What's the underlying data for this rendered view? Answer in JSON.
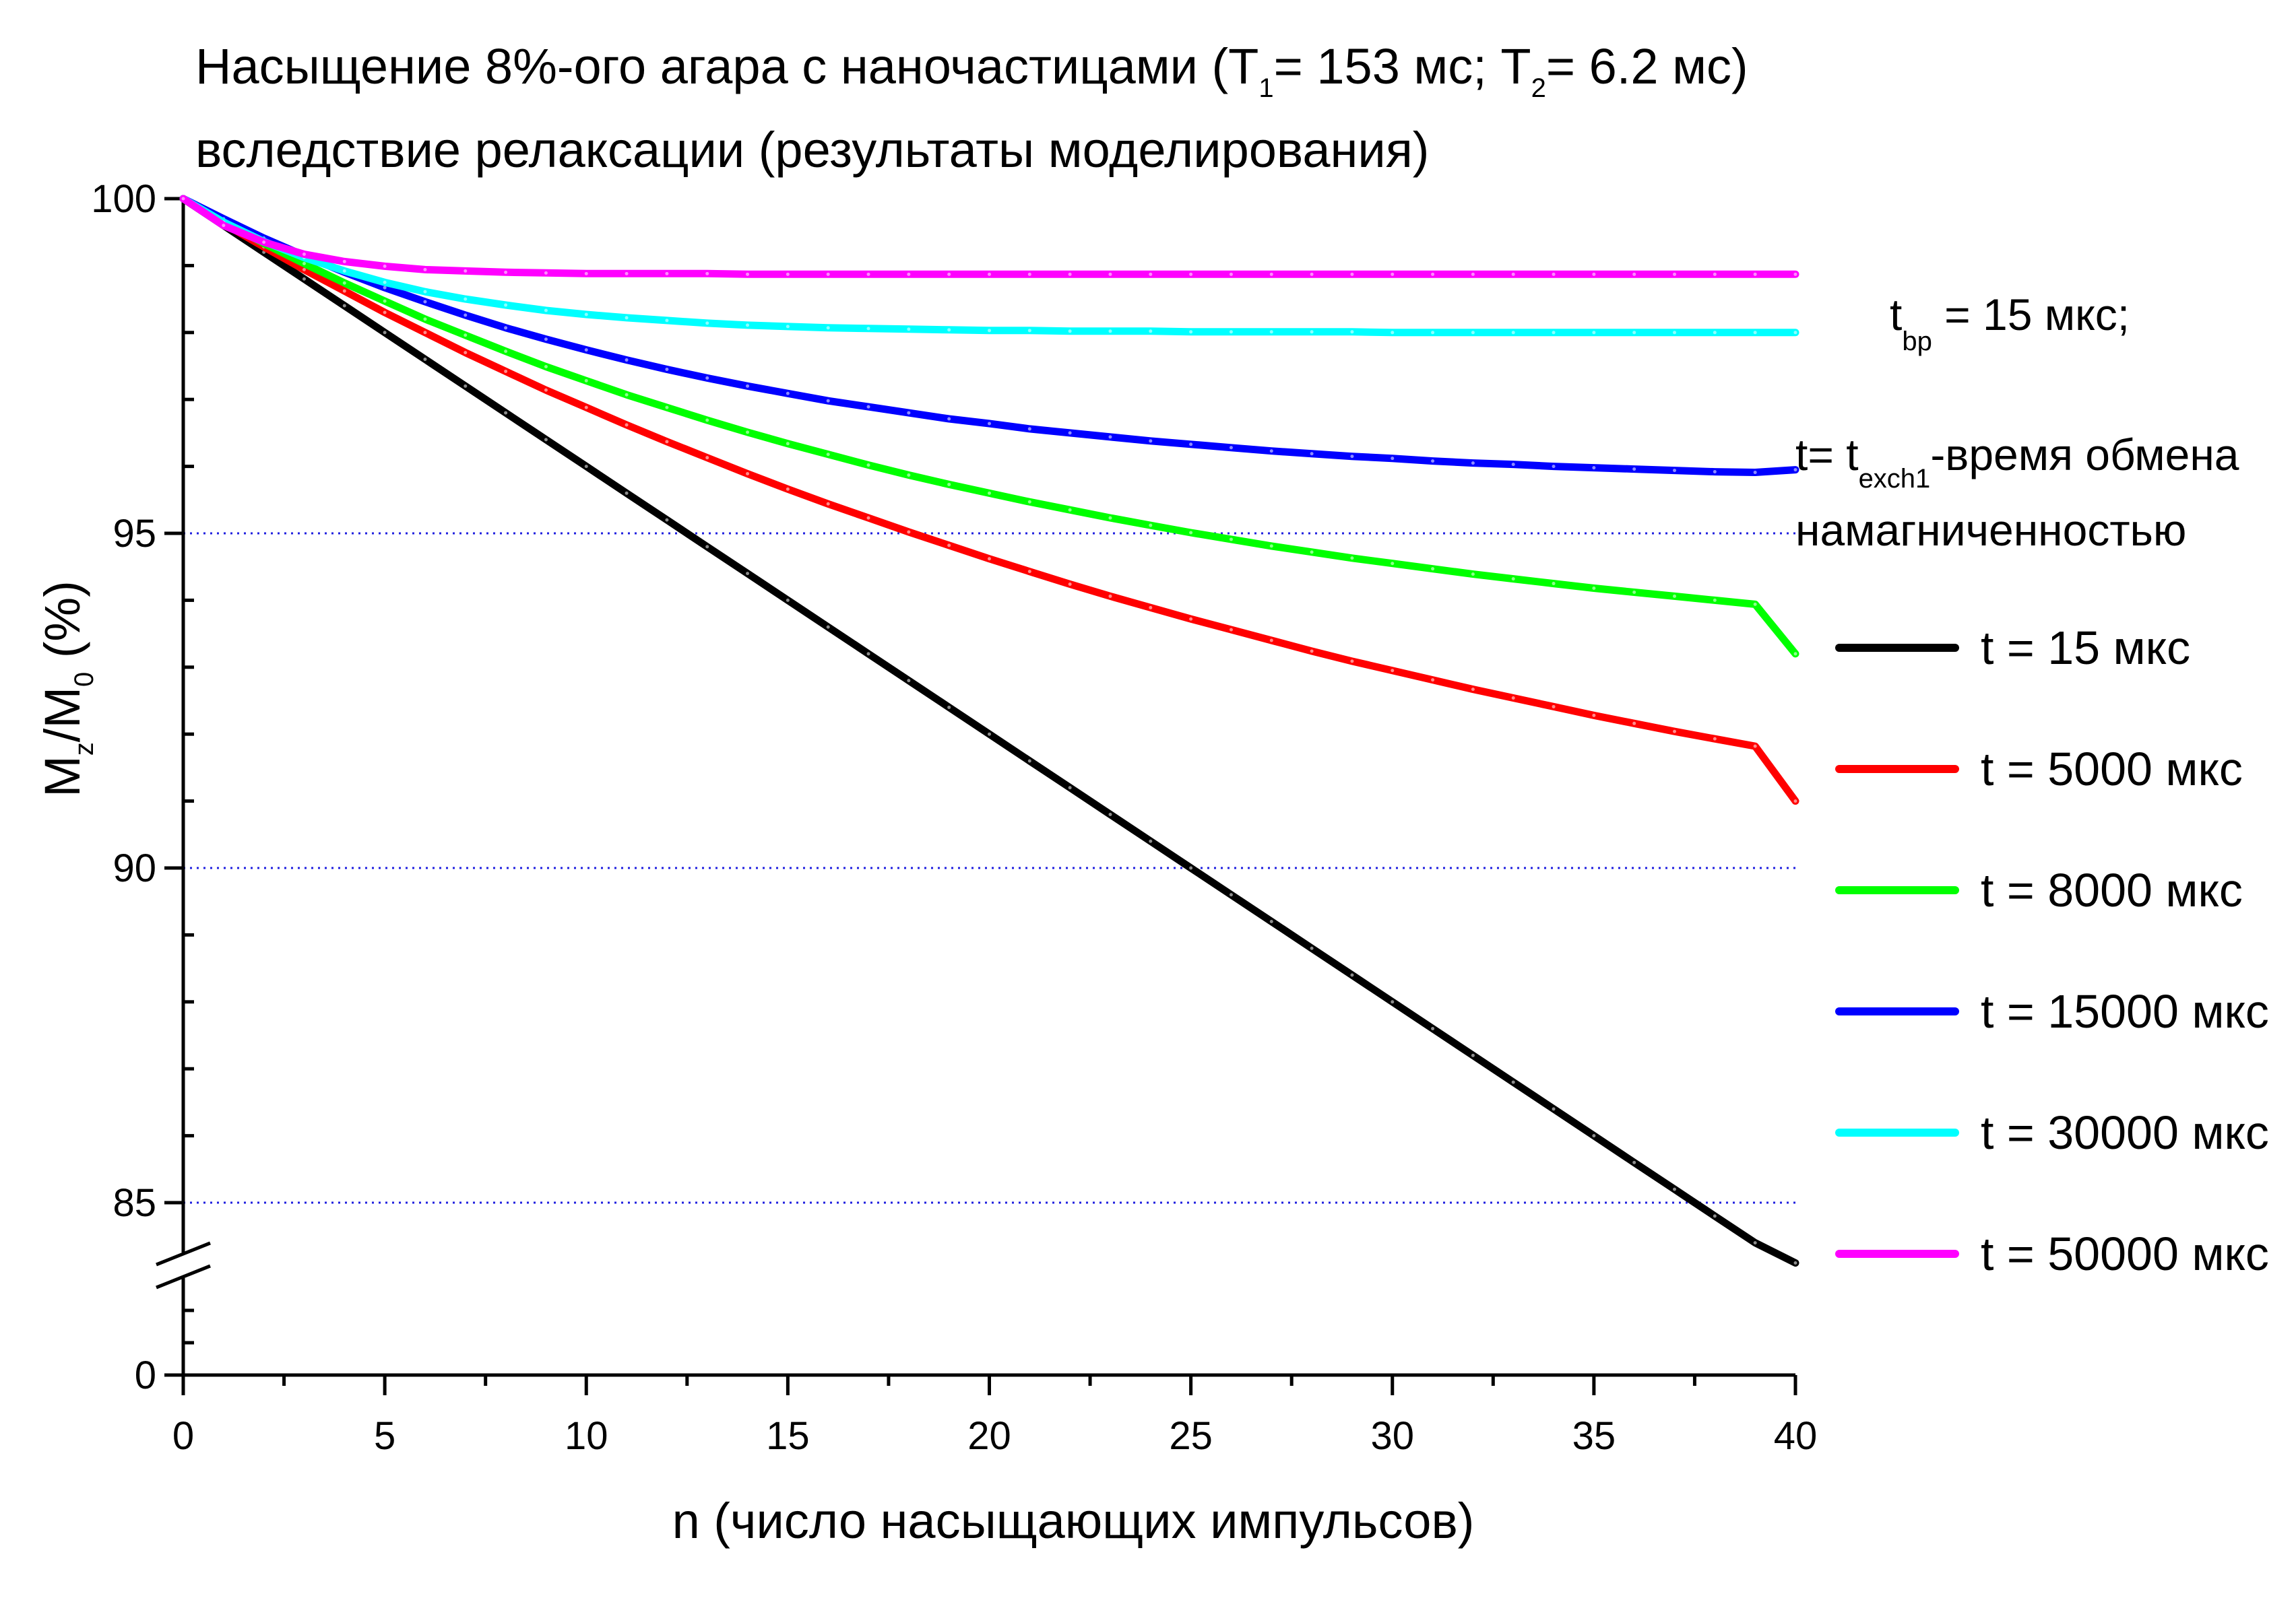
{
  "title": {
    "line1": {
      "prefix": "Насыщение 8%-ого агара с наночастицами (T",
      "t1_sub": "1",
      "mid": "= 153 мс; T",
      "t2_sub": "2",
      "suffix": "= 6.2 мс)"
    },
    "line2": "вследствие релаксации  (результаты моделирования)"
  },
  "notes": {
    "tbp": {
      "main": "t",
      "sub": "bp",
      "rest": " = 15 мкс;"
    },
    "texch": {
      "main": "t= t",
      "sub": "exch1",
      "rest": "-время обмена"
    },
    "texch_line2": "намагниченностью"
  },
  "axes": {
    "x_title": "n (число насыщающих импульсов)",
    "y_title": {
      "m": "M",
      "z": "z",
      "slash": "/M",
      "zero": "0",
      "pct": " (%)"
    }
  },
  "chart_data": {
    "type": "line",
    "xlabel": "n (число насыщающих импульсов)",
    "ylabel": "Mz/M0 (%)",
    "xlim": [
      0,
      40
    ],
    "ylim_main": [
      84,
      100
    ],
    "y_axis_break": "between 0 and 84",
    "x_ticks": [
      "0",
      "5",
      "10",
      "15",
      "20",
      "25",
      "30",
      "35",
      "40"
    ],
    "y_ticks": [
      "100",
      "95",
      "90",
      "85",
      "0"
    ],
    "grid": "dotted horizontal at 85, 90, 95",
    "legend_position": "right",
    "x": [
      0,
      1,
      2,
      3,
      4,
      5,
      6,
      7,
      8,
      9,
      10,
      11,
      12,
      13,
      14,
      15,
      16,
      17,
      18,
      19,
      20,
      21,
      22,
      23,
      24,
      25,
      26,
      27,
      28,
      29,
      30,
      31,
      32,
      33,
      34,
      35,
      36,
      37,
      38,
      39,
      40
    ],
    "series": [
      {
        "name": "t = 15 мкс",
        "color": "#000000",
        "values": [
          100.0,
          99.6,
          99.2,
          98.8,
          98.4,
          98.0,
          97.6,
          97.2,
          96.8,
          96.4,
          96.0,
          95.6,
          95.2,
          94.8,
          94.4,
          94.0,
          93.6,
          93.2,
          92.8,
          92.4,
          92.0,
          91.6,
          91.2,
          90.8,
          90.4,
          90.0,
          89.6,
          89.2,
          88.8,
          88.4,
          88.0,
          87.6,
          87.2,
          86.8,
          86.4,
          86.0,
          85.6,
          85.2,
          84.8,
          84.4,
          84.1
        ]
      },
      {
        "name": "t = 5000 мкс",
        "color": "#ff0000",
        "values": [
          100.0,
          99.63,
          99.28,
          98.94,
          98.62,
          98.3,
          98.0,
          97.7,
          97.42,
          97.14,
          96.88,
          96.62,
          96.37,
          96.13,
          95.89,
          95.66,
          95.44,
          95.23,
          95.02,
          94.82,
          94.62,
          94.43,
          94.24,
          94.06,
          93.89,
          93.72,
          93.56,
          93.4,
          93.24,
          93.09,
          92.95,
          92.81,
          92.67,
          92.54,
          92.41,
          92.28,
          92.16,
          92.04,
          91.93,
          91.82,
          91.0
        ]
      },
      {
        "name": "t = 8000 мкс",
        "color": "#00ff00",
        "values": [
          100.0,
          99.66,
          99.33,
          99.03,
          98.74,
          98.47,
          98.2,
          97.96,
          97.72,
          97.49,
          97.28,
          97.07,
          96.88,
          96.69,
          96.51,
          96.34,
          96.18,
          96.02,
          95.87,
          95.73,
          95.6,
          95.47,
          95.35,
          95.23,
          95.12,
          95.01,
          94.91,
          94.81,
          94.72,
          94.63,
          94.55,
          94.47,
          94.39,
          94.32,
          94.25,
          94.18,
          94.12,
          94.06,
          94.0,
          93.94,
          93.2
        ]
      },
      {
        "name": "t = 15000 мкс",
        "color": "#0000ff",
        "values": [
          100.0,
          99.7,
          99.41,
          99.15,
          98.9,
          98.67,
          98.46,
          98.26,
          98.07,
          97.9,
          97.74,
          97.59,
          97.45,
          97.32,
          97.2,
          97.09,
          96.98,
          96.89,
          96.8,
          96.71,
          96.64,
          96.56,
          96.5,
          96.44,
          96.38,
          96.33,
          96.28,
          96.23,
          96.19,
          96.15,
          96.12,
          96.08,
          96.05,
          96.03,
          96.0,
          95.98,
          95.96,
          95.94,
          95.92,
          95.91,
          95.95
        ]
      },
      {
        "name": "t = 30000 мкс",
        "color": "#00ffff",
        "values": [
          100.0,
          99.65,
          99.36,
          99.12,
          98.92,
          98.75,
          98.61,
          98.5,
          98.41,
          98.33,
          98.27,
          98.22,
          98.18,
          98.14,
          98.11,
          98.09,
          98.07,
          98.06,
          98.05,
          98.04,
          98.03,
          98.03,
          98.02,
          98.02,
          98.02,
          98.01,
          98.01,
          98.01,
          98.01,
          98.01,
          98.0,
          98.0,
          98.0,
          98.0,
          98.0,
          98.0,
          98.0,
          98.0,
          98.0,
          98.0,
          98.0
        ]
      },
      {
        "name": "t = 50000 мкс",
        "color": "#ff00ff",
        "values": [
          100.0,
          99.6,
          99.35,
          99.17,
          99.06,
          98.99,
          98.94,
          98.92,
          98.9,
          98.89,
          98.88,
          98.88,
          98.88,
          98.88,
          98.87,
          98.87,
          98.87,
          98.87,
          98.87,
          98.87,
          98.87,
          98.87,
          98.87,
          98.87,
          98.87,
          98.87,
          98.87,
          98.87,
          98.87,
          98.87,
          98.87,
          98.87,
          98.87,
          98.87,
          98.87,
          98.87,
          98.87,
          98.87,
          98.87,
          98.87,
          98.87
        ]
      }
    ]
  }
}
